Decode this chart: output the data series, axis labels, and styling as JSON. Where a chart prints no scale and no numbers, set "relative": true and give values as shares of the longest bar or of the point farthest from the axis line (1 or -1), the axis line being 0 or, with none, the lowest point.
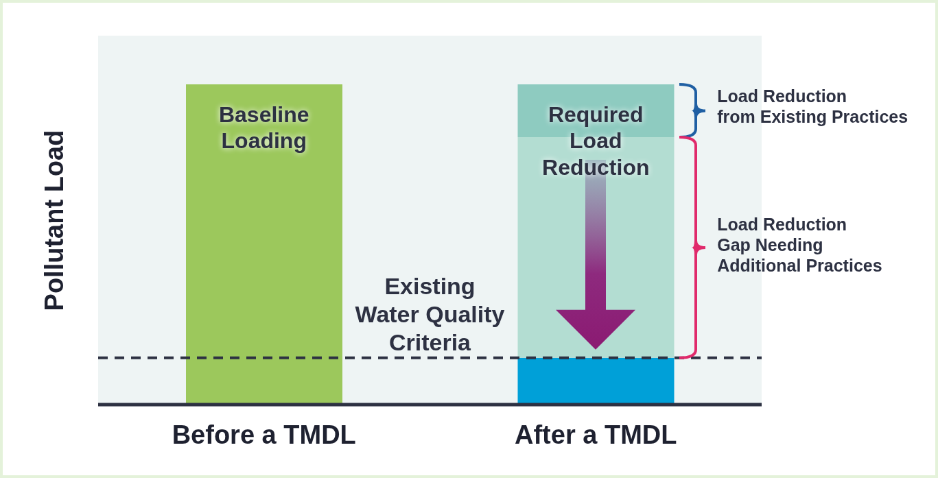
{
  "chart_data": {
    "type": "bar",
    "relative": true,
    "stacked": true,
    "ylabel": "Pollutant Load",
    "categories": [
      "Before a TMDL",
      "After a TMDL"
    ],
    "series": [
      {
        "colors": [
          "#9cc85c",
          "#00a0d8"
        ],
        "values": [
          1,
          0.146
        ]
      },
      {
        "color": "#b3ddd2",
        "values": [
          null,
          0.689
        ]
      },
      {
        "color": "#8ecbc0",
        "values": [
          null,
          0.165
        ]
      }
    ],
    "ref_lines": [
      {
        "axis": "y",
        "value": 0.146,
        "label": "Existing\nWater Quality\nCriteria",
        "line_style": "dashed",
        "color": "#2d3142"
      }
    ],
    "annotations": [
      "Baseline\nLoading",
      "Required\nLoad\nReduction",
      "Load Reduction\nfrom Existing Practices",
      "Load Reduction\nGap Needing\nAdditional Practices"
    ],
    "legend": false
  }
}
